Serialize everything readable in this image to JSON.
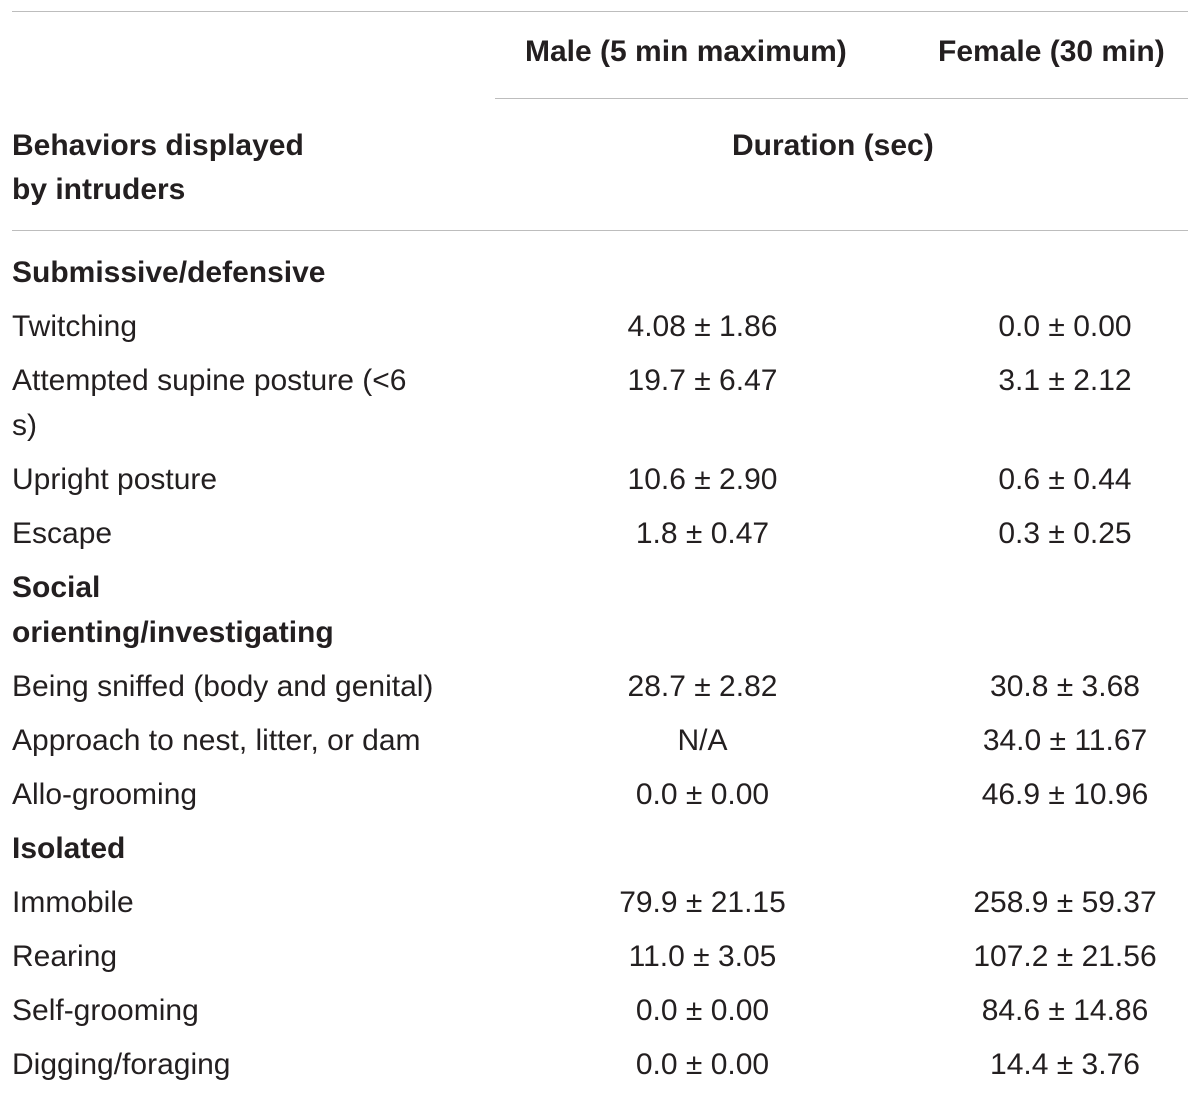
{
  "table": {
    "headers": {
      "male": "Male (5 min maximum)",
      "female": "Female (30 min)",
      "row_label": "Behaviors displayed by intruders",
      "duration": "Duration (sec)"
    },
    "sections": [
      {
        "title": "Submissive/defensive",
        "rows": [
          {
            "label": "Twitching",
            "male": "4.08 ± 1.86",
            "female": "0.0 ± 0.00"
          },
          {
            "label": "Attempted supine posture (<6 s)",
            "male": "19.7 ± 6.47",
            "female": "3.1 ± 2.12"
          },
          {
            "label": "Upright posture",
            "male": "10.6 ± 2.90",
            "female": "0.6 ± 0.44"
          },
          {
            "label": "Escape",
            "male": "1.8 ± 0.47",
            "female": "0.3 ± 0.25"
          }
        ]
      },
      {
        "title": "Social orienting/investigating",
        "rows": [
          {
            "label": "Being sniffed (body and genital)",
            "male": "28.7 ± 2.82",
            "female": "30.8 ± 3.68"
          },
          {
            "label": "Approach to nest, litter, or dam",
            "male": "N/A",
            "female": "34.0 ± 11.67"
          },
          {
            "label": "Allo-grooming",
            "male": "0.0 ± 0.00",
            "female": "46.9 ± 10.96"
          }
        ]
      },
      {
        "title": "Isolated",
        "rows": [
          {
            "label": "Immobile",
            "male": "79.9 ± 21.15",
            "female": "258.9 ± 59.37"
          },
          {
            "label": "Rearing",
            "male": "11.0 ± 3.05",
            "female": "107.2 ± 21.56"
          },
          {
            "label": "Self-grooming",
            "male": "0.0 ± 0.00",
            "female": "84.6 ± 14.86"
          },
          {
            "label": "Digging/foraging",
            "male": "0.0 ± 0.00",
            "female": "14.4 ± 3.76"
          }
        ]
      }
    ]
  }
}
